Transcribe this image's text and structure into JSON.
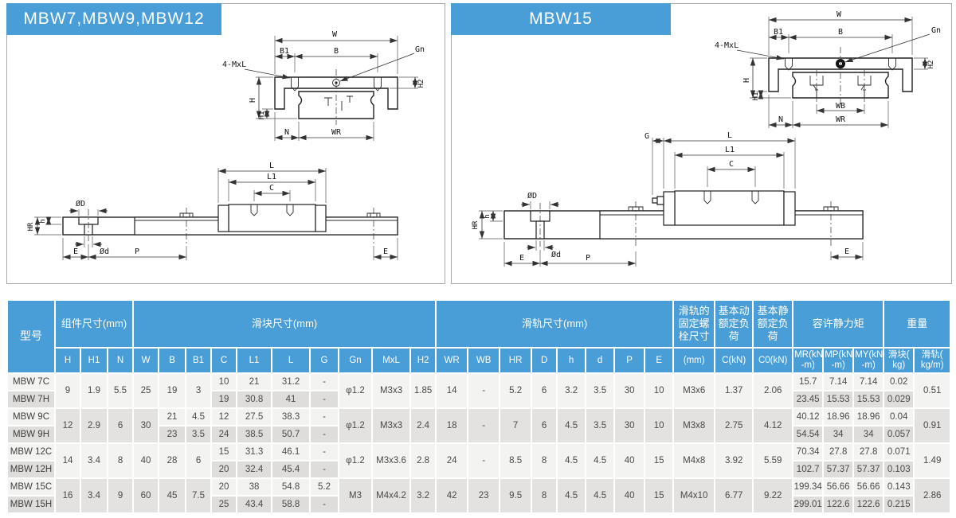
{
  "panels": {
    "left": {
      "title": "MBW7,MBW9,MBW12"
    },
    "right": {
      "title": "MBW15"
    }
  },
  "drawing_labels": {
    "w": "W",
    "b": "B",
    "b1": "B1",
    "gn": "Gn",
    "mxl": "4-MxL",
    "h_dim": "H",
    "h1": "H1",
    "h2": "H2",
    "n": "N",
    "wr": "WR",
    "wb": "WB",
    "l": "L",
    "l1": "L1",
    "c": "C",
    "g": "G",
    "dia_big": "ØD",
    "dia_small": "Ød",
    "hr": "HR",
    "h_small": "h",
    "e": "E",
    "p": "P"
  },
  "table": {
    "model_header": "型号",
    "col_groups": [
      {
        "label": "组件尺寸(mm)",
        "span": 3
      },
      {
        "label": "滑块尺寸(mm)",
        "span": 10
      },
      {
        "label": "滑轨尺寸(mm)",
        "span": 8
      },
      {
        "label": "滑轨的固定螺栓尺寸",
        "span": 1
      },
      {
        "label": "基本动额定负荷",
        "span": 1
      },
      {
        "label": "基本静额定负荷",
        "span": 1
      },
      {
        "label": "容许静力矩",
        "span": 3
      },
      {
        "label": "重量",
        "span": 2
      }
    ],
    "col_keys": [
      "H",
      "H1",
      "N",
      "W",
      "B",
      "B1",
      "C",
      "L1",
      "L",
      "G",
      "Gn",
      "MxL",
      "H2",
      "WR",
      "WB",
      "HR",
      "D",
      "h",
      "d",
      "P",
      "E",
      "bolt",
      "CkN",
      "C0kN",
      "MR",
      "MP",
      "MY",
      "w_block",
      "w_rail"
    ],
    "sub_cols": [
      "H",
      "H1",
      "N",
      "W",
      "B",
      "B1",
      "C",
      "L1",
      "L",
      "G",
      "Gn",
      "MxL",
      "H2",
      "WR",
      "WB",
      "HR",
      "D",
      "h",
      "d",
      "P",
      "E",
      "(mm)",
      "C(kN)",
      "C0(kN)",
      "MR(kN\n-m)",
      "MP(kN\n-m)",
      "MY(kN\n-m)",
      "滑块(\nkg)",
      "滑轨(\nkg/m)"
    ],
    "groups": [
      {
        "models": [
          "MBW 7C",
          "MBW 7H"
        ],
        "cells": {
          "H": "9",
          "H1": "1.9",
          "N": "5.5",
          "W": "25",
          "B": "19",
          "B1": "3",
          "C": [
            "10",
            "19"
          ],
          "L1": [
            "21",
            "30.8"
          ],
          "L": [
            "31.2",
            "41"
          ],
          "G": [
            "-",
            "-"
          ],
          "Gn": "φ1.2",
          "MxL": "M3x3",
          "H2": "1.85",
          "WR": "14",
          "WB": "-",
          "HR": "5.2",
          "D": "6",
          "h": "3.2",
          "d": "3.5",
          "P": "30",
          "E": "10",
          "bolt": "M3x6",
          "CkN": "1.37",
          "C0kN": "2.06",
          "MR": [
            "15.7",
            "23.45"
          ],
          "MP": [
            "7.14",
            "15.53"
          ],
          "MY": [
            "7.14",
            "15.53"
          ],
          "w_block": [
            "0.02",
            "0.029"
          ],
          "w_rail": "0.51"
        }
      },
      {
        "models": [
          "MBW 9C",
          "MBW 9H"
        ],
        "cells": {
          "H": "12",
          "H1": "2.9",
          "N": "6",
          "W": "30",
          "B": [
            "21",
            "23"
          ],
          "B1": [
            "4.5",
            "3.5"
          ],
          "C": [
            "12",
            "24"
          ],
          "L1": [
            "27.5",
            "38.5"
          ],
          "L": [
            "38.3",
            "50.7"
          ],
          "G": [
            "-",
            "-"
          ],
          "Gn": "φ1.2",
          "MxL": "M3x3",
          "H2": "2.4",
          "WR": "18",
          "WB": "-",
          "HR": "7",
          "D": "6",
          "h": "4.5",
          "d": "3.5",
          "P": "30",
          "E": "10",
          "bolt": "M3x8",
          "CkN": "2.75",
          "C0kN": "4.12",
          "MR": [
            "40.12",
            "54.54"
          ],
          "MP": [
            "18.96",
            "34"
          ],
          "MY": [
            "18.96",
            "34"
          ],
          "w_block": [
            "0.04",
            "0.057"
          ],
          "w_rail": "0.91"
        }
      },
      {
        "models": [
          "MBW 12C",
          "MBW 12H"
        ],
        "cells": {
          "H": "14",
          "H1": "3.4",
          "N": "8",
          "W": "40",
          "B": "28",
          "B1": "6",
          "C": [
            "15",
            "20"
          ],
          "L1": [
            "31.3",
            "32.4"
          ],
          "L": [
            "46.1",
            "45.4"
          ],
          "G": [
            "-",
            "-"
          ],
          "Gn": "φ1.2",
          "MxL": "M3x3.6",
          "H2": "2.8",
          "WR": "24",
          "WB": "-",
          "HR": "8.5",
          "D": "8",
          "h": "4.5",
          "d": "4.5",
          "P": "40",
          "E": "15",
          "bolt": "M4x8",
          "CkN": "3.92",
          "C0kN": "5.59",
          "MR": [
            "70.34",
            "102.7"
          ],
          "MP": [
            "27.8",
            "57.37"
          ],
          "MY": [
            "27.8",
            "57.37"
          ],
          "w_block": [
            "0.071",
            "0.103"
          ],
          "w_rail": "1.49"
        }
      },
      {
        "models": [
          "MBW 15C",
          "MBW 15H"
        ],
        "cells": {
          "H": "16",
          "H1": "3.4",
          "N": "9",
          "W": "60",
          "B": "45",
          "B1": "7.5",
          "C": [
            "20",
            "25"
          ],
          "L1": [
            "38",
            "43.4"
          ],
          "L": [
            "54.8",
            "58.8"
          ],
          "G": [
            "5.2",
            "-"
          ],
          "Gn": "M3",
          "MxL": "M4x4.2",
          "H2": "3.2",
          "WR": "42",
          "WB": "23",
          "HR": "9.5",
          "D": "8",
          "h": "4.5",
          "d": "4.5",
          "P": "40",
          "E": "15",
          "bolt": "M4x10",
          "CkN": "6.77",
          "C0kN": "9.22",
          "MR": [
            "199.34",
            "299.01"
          ],
          "MP": [
            "56.66",
            "122.6"
          ],
          "MY": [
            "56.66",
            "122.6"
          ],
          "w_block": [
            "0.143",
            "0.215"
          ],
          "w_rail": "2.86"
        }
      }
    ]
  },
  "colors": {
    "accent_blue": "#4A9ED8",
    "row_light": "#F3F3F1",
    "row_dark": "#DEDDDB",
    "merged_dark": "#E3E2E0"
  }
}
